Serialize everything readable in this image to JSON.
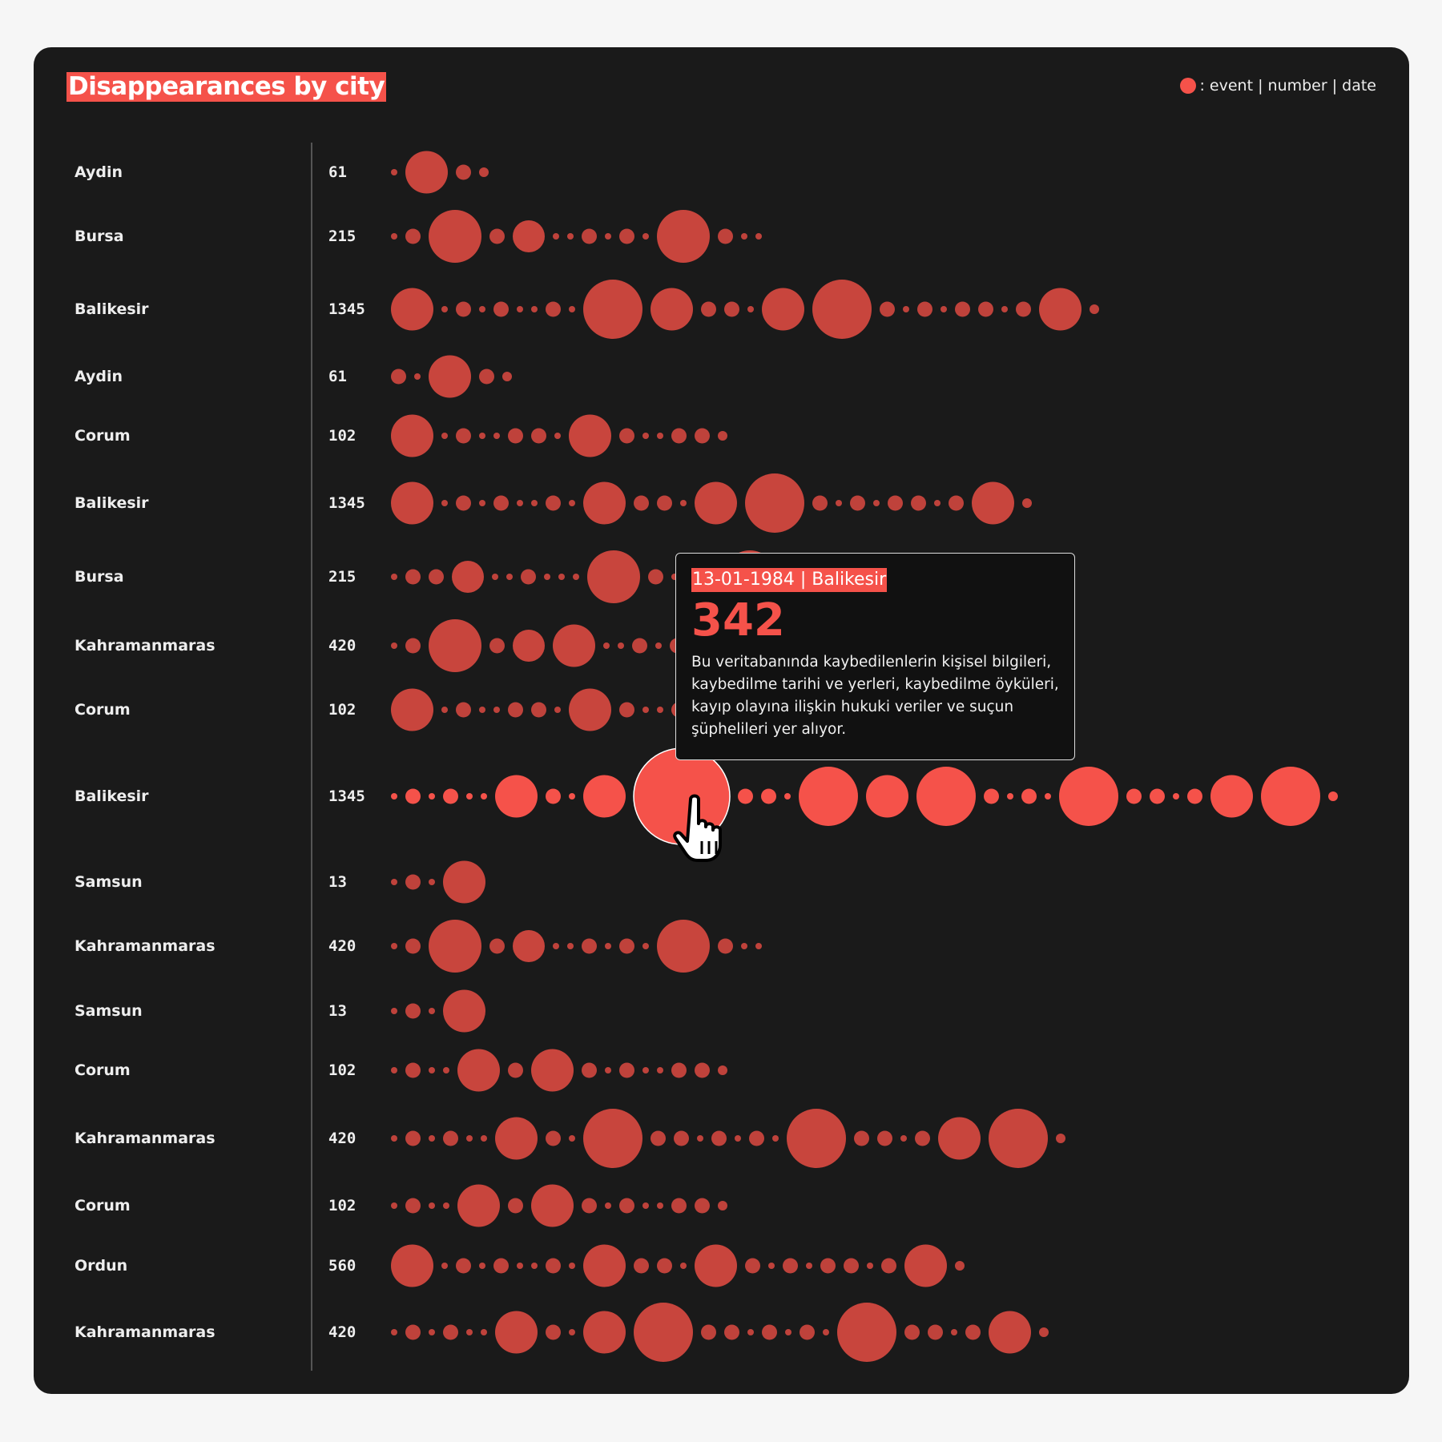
{
  "chart_data": {
    "type": "scatter",
    "title": "Disappearances by city",
    "legend": {
      "label": ": event | number | date",
      "placement": "top-right"
    },
    "colors": {
      "dot": "#c8453d",
      "highlight": "#f5524a",
      "background": "#1a1a1a"
    },
    "rows": [
      {
        "city": "Aydin",
        "count": "61",
        "events": [
          1,
          6,
          3,
          2
        ]
      },
      {
        "city": "Bursa",
        "count": "215",
        "events": [
          1,
          3,
          7,
          3,
          5,
          1,
          1,
          3,
          1,
          3,
          1,
          7,
          3,
          1,
          1
        ]
      },
      {
        "city": "Balikesir",
        "count": "1345",
        "events": [
          6,
          1,
          3,
          1,
          3,
          1,
          1,
          3,
          1,
          8,
          6,
          3,
          3,
          1,
          6,
          8,
          3,
          1,
          3,
          1,
          3,
          3,
          1,
          3,
          6,
          2
        ]
      },
      {
        "city": "Aydin",
        "count": "61",
        "events": [
          3,
          1,
          6,
          3,
          2
        ]
      },
      {
        "city": "Corum",
        "count": "102",
        "events": [
          6,
          1,
          3,
          1,
          1,
          3,
          3,
          1,
          6,
          3,
          1,
          1,
          3,
          3,
          2
        ]
      },
      {
        "city": "Balikesir",
        "count": "1345",
        "events": [
          6,
          1,
          3,
          1,
          3,
          1,
          1,
          3,
          1,
          6,
          3,
          3,
          1,
          6,
          8,
          3,
          1,
          3,
          1,
          3,
          3,
          1,
          3,
          6,
          2
        ]
      },
      {
        "city": "Bursa",
        "count": "215",
        "events": [
          1,
          3,
          3,
          5,
          1,
          1,
          3,
          1,
          1,
          1,
          7,
          3,
          1,
          3,
          1,
          7,
          3,
          1,
          1
        ]
      },
      {
        "city": "Kahramanmaras",
        "count": "420",
        "events": [
          1,
          3,
          7,
          3,
          5,
          6,
          1,
          1,
          3,
          1,
          3,
          1,
          7,
          3,
          1,
          1
        ]
      },
      {
        "city": "Corum",
        "count": "102",
        "events": [
          6,
          1,
          3,
          1,
          1,
          3,
          3,
          1,
          6,
          3,
          1,
          1,
          3,
          3,
          2
        ]
      },
      {
        "city": "Balikesir",
        "count": "1345",
        "highlighted": true,
        "hovered_index": 10,
        "events": [
          1,
          3,
          1,
          3,
          1,
          1,
          6,
          3,
          1,
          6,
          9,
          3,
          3,
          1,
          8,
          6,
          8,
          3,
          1,
          3,
          1,
          8,
          3,
          3,
          1,
          3,
          6,
          8,
          2
        ]
      },
      {
        "city": "Samsun",
        "count": "13",
        "events": [
          1,
          3,
          1,
          6
        ]
      },
      {
        "city": "Kahramanmaras",
        "count": "420",
        "events": [
          1,
          3,
          7,
          3,
          5,
          1,
          1,
          3,
          1,
          3,
          1,
          7,
          3,
          1,
          1
        ]
      },
      {
        "city": "Samsun",
        "count": "13",
        "events": [
          1,
          3,
          1,
          6
        ]
      },
      {
        "city": "Corum",
        "count": "102",
        "events": [
          1,
          3,
          1,
          1,
          6,
          3,
          6,
          3,
          1,
          3,
          1,
          1,
          3,
          3,
          2
        ]
      },
      {
        "city": "Kahramanmaras",
        "count": "420",
        "events": [
          1,
          3,
          1,
          3,
          1,
          1,
          6,
          3,
          1,
          8,
          3,
          3,
          1,
          3,
          1,
          3,
          1,
          8,
          3,
          3,
          1,
          3,
          6,
          8,
          2
        ]
      },
      {
        "city": "Corum",
        "count": "102",
        "events": [
          1,
          3,
          1,
          1,
          6,
          3,
          6,
          3,
          1,
          3,
          1,
          1,
          3,
          3,
          2
        ]
      },
      {
        "city": "Ordun",
        "count": "560",
        "events": [
          6,
          1,
          3,
          1,
          3,
          1,
          1,
          3,
          1,
          6,
          3,
          3,
          1,
          6,
          3,
          1,
          3,
          1,
          3,
          3,
          1,
          3,
          6,
          2
        ]
      },
      {
        "city": "Kahramanmaras",
        "count": "420",
        "events": [
          1,
          3,
          1,
          3,
          1,
          1,
          6,
          3,
          1,
          6,
          8,
          3,
          3,
          1,
          3,
          1,
          3,
          1,
          8,
          3,
          3,
          1,
          3,
          6,
          2
        ]
      }
    ]
  },
  "tooltip": {
    "date_city": "13-01-1984 | Balikesir",
    "number": "342",
    "body": "Bu veritabanında kaybedilenlerin kişisel bilgileri, kaybedilme tarihi ve yerleri, kaybedilme öyküleri, kayıp olayına ilişkin hukuki veriler ve suçun şüphelileri yer alıyor."
  },
  "cursor_icon": "hand-pointer-icon"
}
